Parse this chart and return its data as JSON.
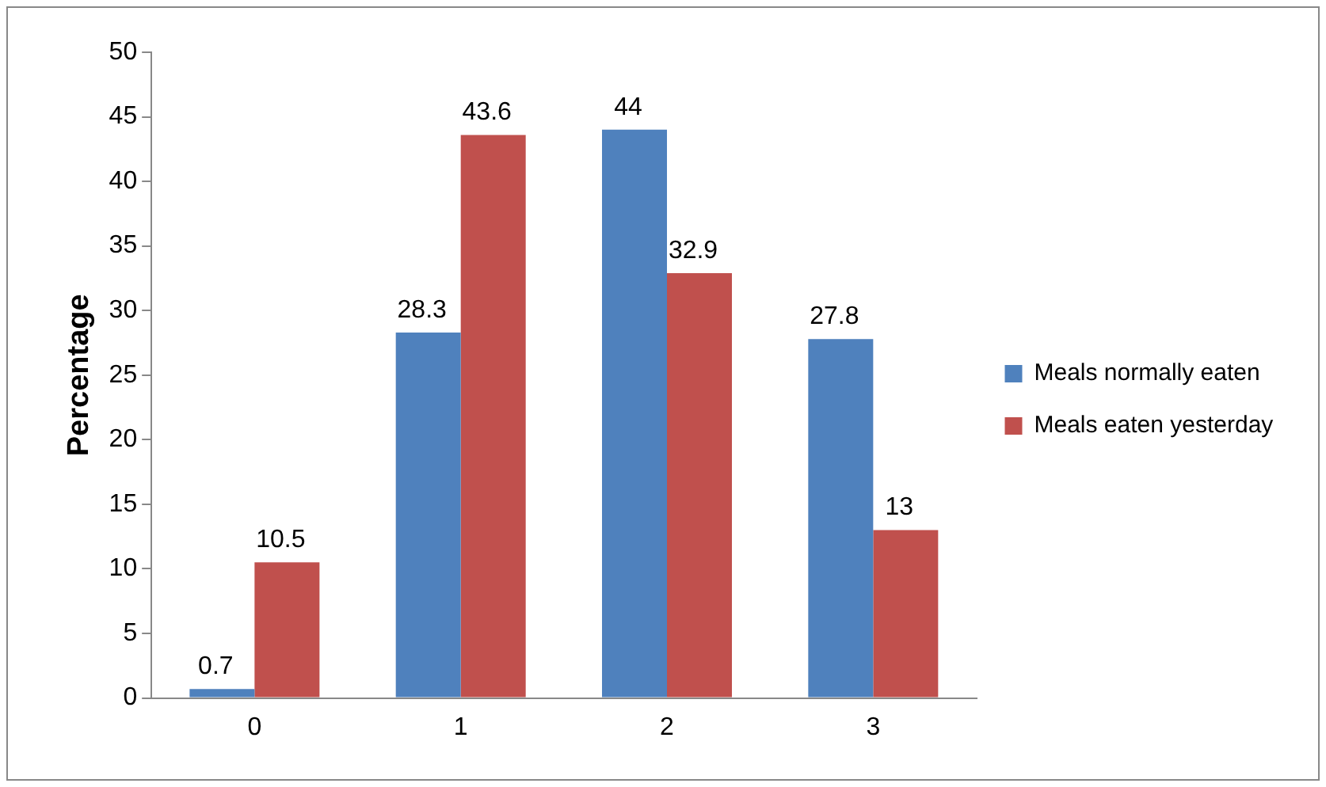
{
  "chart_data": {
    "type": "bar",
    "ylabel": "Percentage",
    "categories": [
      "0",
      "1",
      "2",
      "3"
    ],
    "series": [
      {
        "name": "Meals normally eaten",
        "color": "#4f81bd",
        "values": [
          0.7,
          28.3,
          44,
          27.8
        ]
      },
      {
        "name": "Meals eaten yesterday",
        "color": "#c0504d",
        "values": [
          10.5,
          43.6,
          32.9,
          13
        ]
      }
    ],
    "ylim": [
      0,
      50
    ],
    "yticks": [
      0,
      5,
      10,
      15,
      20,
      25,
      30,
      35,
      40,
      45,
      50
    ],
    "grid": false,
    "legend": "right",
    "data_labels": true
  }
}
